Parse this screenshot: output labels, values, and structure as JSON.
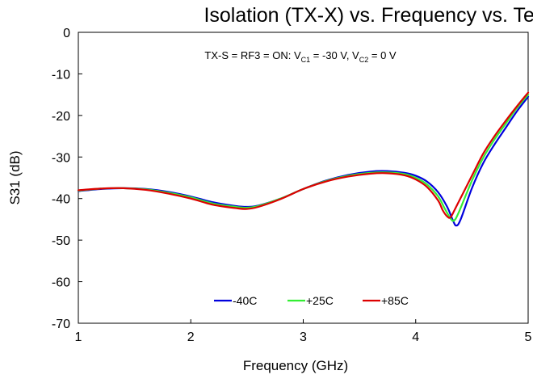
{
  "chart_data": {
    "type": "line",
    "title": "Isolation (TX-X) vs. Frequency vs. Temp.",
    "xlabel": "Frequency (GHz)",
    "ylabel": "S31 (dB)",
    "xlim": [
      1,
      5
    ],
    "ylim": [
      -70,
      0
    ],
    "x_ticks": [
      "1",
      "2",
      "3",
      "4",
      "5"
    ],
    "y_ticks": [
      "0",
      "-10",
      "-20",
      "-30",
      "-40",
      "-50",
      "-60",
      "-70"
    ],
    "grid": false,
    "legend_position": "bottom-center",
    "annotation": {
      "part1": "TX-S = RF3 = ON: V",
      "sub1": "C1",
      "part2": " = -30 V, V",
      "sub2": "C2",
      "part3": " = 0 V"
    },
    "series": [
      {
        "name": "-40C",
        "color": "#0000dd",
        "x": [
          1.0,
          1.2,
          1.4,
          1.6,
          1.8,
          2.0,
          2.2,
          2.4,
          2.5,
          2.6,
          2.8,
          3.0,
          3.2,
          3.4,
          3.6,
          3.75,
          3.9,
          4.0,
          4.1,
          4.2,
          4.28,
          4.33,
          4.36,
          4.4,
          4.5,
          4.6,
          4.7,
          4.8,
          4.9,
          5.0
        ],
        "y": [
          -38.2,
          -37.7,
          -37.5,
          -37.7,
          -38.4,
          -39.5,
          -40.9,
          -41.8,
          -42.0,
          -41.7,
          -40.0,
          -37.7,
          -35.7,
          -34.3,
          -33.5,
          -33.4,
          -33.8,
          -34.5,
          -35.9,
          -38.5,
          -42.0,
          -45.2,
          -46.5,
          -45.0,
          -37.5,
          -31.5,
          -27.0,
          -23.0,
          -19.0,
          -15.5
        ]
      },
      {
        "name": "+25C",
        "color": "#33ee33",
        "x": [
          1.0,
          1.2,
          1.4,
          1.6,
          1.8,
          2.0,
          2.2,
          2.4,
          2.5,
          2.6,
          2.8,
          3.0,
          3.2,
          3.4,
          3.6,
          3.75,
          3.9,
          4.0,
          4.1,
          4.2,
          4.26,
          4.31,
          4.34,
          4.38,
          4.5,
          4.6,
          4.7,
          4.8,
          4.9,
          5.0
        ],
        "y": [
          -38.1,
          -37.6,
          -37.5,
          -37.8,
          -38.6,
          -39.7,
          -41.2,
          -42.0,
          -42.2,
          -41.8,
          -40.0,
          -37.7,
          -35.8,
          -34.5,
          -33.8,
          -33.7,
          -34.1,
          -35.0,
          -36.6,
          -39.5,
          -42.5,
          -44.8,
          -45.3,
          -43.5,
          -35.7,
          -30.2,
          -25.8,
          -22.0,
          -18.2,
          -15.0
        ]
      },
      {
        "name": "+85C",
        "color": "#dd0000",
        "x": [
          1.0,
          1.2,
          1.4,
          1.6,
          1.8,
          2.0,
          2.2,
          2.4,
          2.5,
          2.6,
          2.8,
          3.0,
          3.2,
          3.4,
          3.6,
          3.75,
          3.9,
          4.0,
          4.1,
          4.2,
          4.24,
          4.28,
          4.31,
          4.35,
          4.5,
          4.6,
          4.7,
          4.8,
          4.9,
          5.0
        ],
        "y": [
          -38.0,
          -37.6,
          -37.5,
          -37.9,
          -38.8,
          -40.0,
          -41.5,
          -42.3,
          -42.5,
          -42.0,
          -40.1,
          -37.7,
          -35.9,
          -34.7,
          -34.0,
          -33.9,
          -34.4,
          -35.4,
          -37.2,
          -40.5,
          -42.8,
          -44.3,
          -44.5,
          -42.5,
          -34.5,
          -29.2,
          -25.0,
          -21.3,
          -17.8,
          -14.5
        ]
      }
    ]
  }
}
